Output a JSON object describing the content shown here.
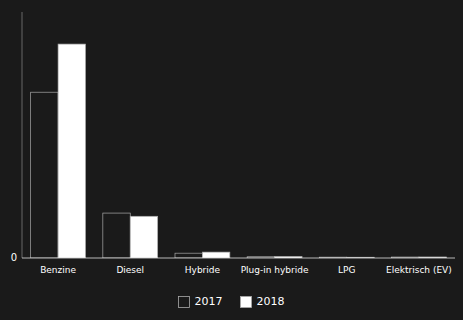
{
  "chart_data": {
    "type": "bar",
    "categories": [
      "Benzine",
      "Diesel",
      "Hybride",
      "Plug-in hybride",
      "LPG",
      "Elektrisch (EV)"
    ],
    "series": [
      {
        "name": "2017",
        "color": "#1a1a1a",
        "values": [
          155000,
          42000,
          4500,
          1200,
          800,
          900
        ]
      },
      {
        "name": "2018",
        "color": "#ffffff",
        "values": [
          200000,
          39000,
          5500,
          1400,
          700,
          950
        ]
      }
    ],
    "ylim": [
      0,
      230000
    ],
    "yticks": [
      0
    ],
    "grid": false,
    "legend": "bottom"
  }
}
